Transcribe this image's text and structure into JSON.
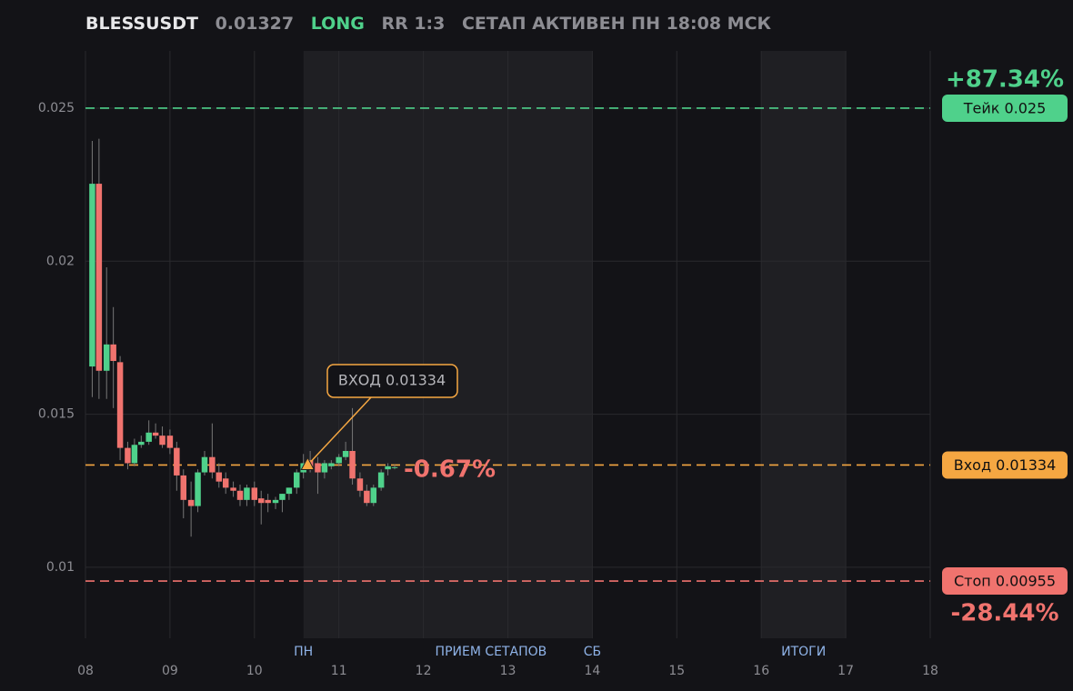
{
  "chart_data": {
    "type": "candlestick",
    "header": {
      "symbol": "BLESSUSDT",
      "price": "0.01327",
      "side": "LONG",
      "rr": "RR 1:3",
      "status": "СЕТАП АКТИВЕН ПН 18:08 МСК"
    },
    "x": [
      8.08,
      8.16,
      8.25,
      8.33,
      8.41,
      8.5,
      8.58,
      8.66,
      8.75,
      8.83,
      8.91,
      9.0,
      9.08,
      9.16,
      9.25,
      9.33,
      9.41,
      9.5,
      9.58,
      9.66,
      9.75,
      9.83,
      9.91,
      10.0,
      10.08,
      10.16,
      10.25,
      10.33,
      10.41,
      10.5,
      10.58,
      10.66,
      10.75,
      10.83,
      10.91,
      11.0,
      11.08,
      11.16,
      11.25,
      11.33,
      11.41,
      11.5,
      11.58,
      11.66
    ],
    "open": [
      0.01656,
      0.02253,
      0.01642,
      0.01728,
      0.0167,
      0.0139,
      0.0134,
      0.014,
      0.0141,
      0.0144,
      0.0143,
      0.0143,
      0.0139,
      0.013,
      0.0122,
      0.012,
      0.0131,
      0.0136,
      0.0131,
      0.0129,
      0.0126,
      0.0125,
      0.0122,
      0.0126,
      0.01225,
      0.0122,
      0.0121,
      0.0122,
      0.0124,
      0.0126,
      0.0131,
      0.0135,
      0.0134,
      0.0131,
      0.0133,
      0.0134,
      0.0136,
      0.0138,
      0.0129,
      0.0125,
      0.0121,
      0.0126,
      0.0132,
      0.01325
    ],
    "high": [
      0.02393,
      0.024,
      0.0198,
      0.0185,
      0.0169,
      0.0141,
      0.0142,
      0.0143,
      0.0148,
      0.0147,
      0.0146,
      0.0145,
      0.0141,
      0.0132,
      0.0128,
      0.0132,
      0.0138,
      0.0147,
      0.0134,
      0.0131,
      0.0128,
      0.0127,
      0.0127,
      0.0128,
      0.0125,
      0.0124,
      0.0123,
      0.0124,
      0.0126,
      0.0132,
      0.0137,
      0.0138,
      0.0136,
      0.0135,
      0.0135,
      0.0137,
      0.0141,
      0.0152,
      0.0131,
      0.0127,
      0.0127,
      0.0132,
      0.0134,
      0.01335
    ],
    "low": [
      0.01556,
      0.0155,
      0.0155,
      0.0152,
      0.0135,
      0.0132,
      0.0133,
      0.0139,
      0.014,
      0.0142,
      0.0139,
      0.0137,
      0.0125,
      0.0116,
      0.011,
      0.0118,
      0.013,
      0.0129,
      0.0126,
      0.0124,
      0.0123,
      0.012,
      0.012,
      0.012,
      0.0114,
      0.0118,
      0.0119,
      0.0118,
      0.0122,
      0.0124,
      0.0129,
      0.0131,
      0.0124,
      0.0129,
      0.0132,
      0.0133,
      0.0135,
      0.0127,
      0.0123,
      0.012,
      0.012,
      0.0125,
      0.013,
      0.0132
    ],
    "close": [
      0.02253,
      0.01642,
      0.01728,
      0.01674,
      0.0139,
      0.0134,
      0.014,
      0.0141,
      0.0144,
      0.0143,
      0.014,
      0.0139,
      0.013,
      0.0122,
      0.012,
      0.0131,
      0.0136,
      0.0131,
      0.0128,
      0.0126,
      0.0125,
      0.0122,
      0.0126,
      0.0122,
      0.0121,
      0.0121,
      0.0122,
      0.0124,
      0.0126,
      0.0131,
      0.0134,
      0.0132,
      0.0131,
      0.0134,
      0.0134,
      0.0136,
      0.0138,
      0.0129,
      0.0125,
      0.0121,
      0.0126,
      0.0131,
      0.0133,
      0.01327
    ],
    "up_color": "#4fd18b",
    "down_color": "#f0736e",
    "xlim": [
      8,
      18
    ],
    "xticks": [
      {
        "value": 8,
        "label": "08"
      },
      {
        "value": 9,
        "label": "09"
      },
      10,
      11,
      12,
      13,
      14,
      15,
      16,
      17,
      18
    ],
    "ylim": [
      0.00768,
      0.02687
    ],
    "yticks": [
      0.01,
      0.015,
      0.02,
      0.025
    ],
    "grid": true,
    "shades": [
      {
        "start": 10.58,
        "end": 14
      },
      {
        "start": 16,
        "end": 17
      }
    ],
    "sessions": [
      {
        "label": "ПН",
        "x": 10.58
      },
      {
        "label": "ПРИЕМ СЕТАПОВ",
        "x": 12.8
      },
      {
        "label": "СБ",
        "x": 14
      },
      {
        "label": "ИТОГИ",
        "x": 16.5
      }
    ],
    "levels": [
      {
        "value": 0.025,
        "label": "Тейк 0.025",
        "pct": "+87.34%",
        "color": "#4fd18b"
      },
      {
        "value": 0.01334,
        "label": "Вход 0.01334",
        "color": "#f5a742"
      },
      {
        "value": 0.00955,
        "label": "Стоп 0.00955",
        "pct": "-28.44%",
        "color": "#f0736e"
      }
    ],
    "entry_marker": {
      "x": 10.63,
      "value": 0.01334,
      "label": "ВХОД 0.01334"
    },
    "pnl": "-0.67%"
  }
}
